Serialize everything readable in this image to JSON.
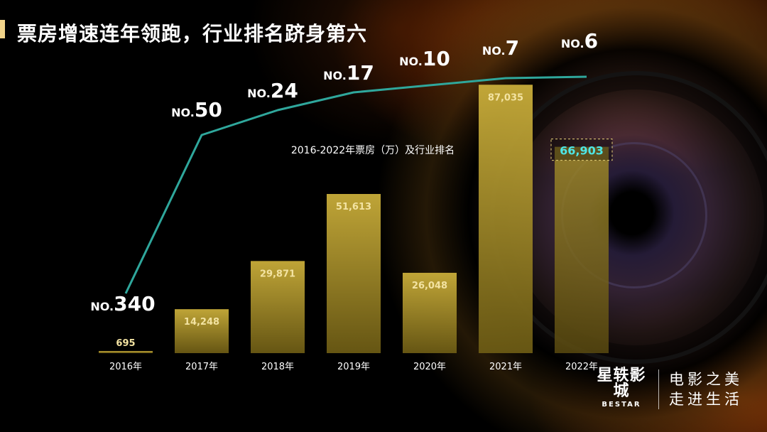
{
  "header": {
    "title": "票房增速连年领跑，行业排名跻身第六"
  },
  "chart_data": {
    "type": "bar",
    "title": "2016-2022年票房（万）及行业排名",
    "categories": [
      "2016年",
      "2017年",
      "2018年",
      "2019年",
      "2020年",
      "2021年",
      "2022年"
    ],
    "values": [
      695,
      14248,
      29871,
      51613,
      26048,
      87035,
      66903
    ],
    "value_labels": [
      "695",
      "14,248",
      "29,871",
      "51,613",
      "26,048",
      "87,035",
      "66,903"
    ],
    "ranks": [
      340,
      50,
      24,
      17,
      10,
      7,
      6
    ],
    "rank_prefix": "NO.",
    "highlight_index": 6,
    "colors": {
      "bar": "#b79c2e",
      "line": "#2fa79c",
      "label": "#f3e3a2",
      "highlight": "#4ee6e6"
    }
  },
  "logo": {
    "brand_cn": "星轶影城",
    "brand_en": "BESTAR",
    "slogan_line1": "电影之美",
    "slogan_line2": "走进生活"
  }
}
